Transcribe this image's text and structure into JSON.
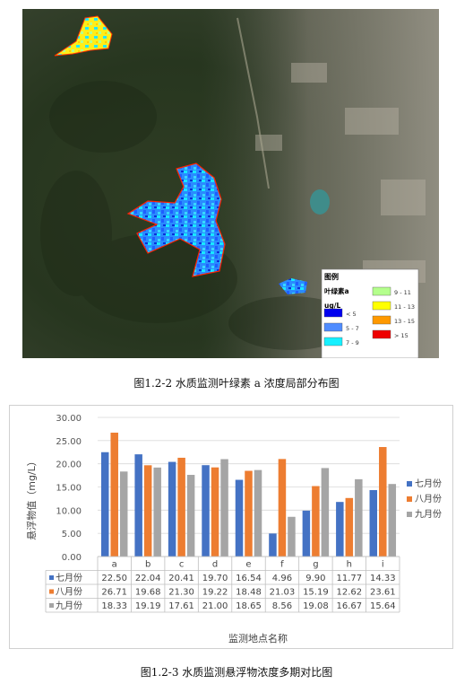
{
  "map_figure": {
    "legend": {
      "title": "图例",
      "parameter": "叶绿素a",
      "unit": "ug/L",
      "items": [
        {
          "label": "< 5",
          "color": "#0000ee"
        },
        {
          "label": "5 - 7",
          "color": "#4f8cff"
        },
        {
          "label": "7 - 9",
          "color": "#16f0ff"
        },
        {
          "label": "9 - 11",
          "color": "#b4ff8c"
        },
        {
          "label": "11 - 13",
          "color": "#ffff00"
        },
        {
          "label": "13 - 15",
          "color": "#ff9900"
        },
        {
          "label": "> 15",
          "color": "#ee0000"
        }
      ]
    },
    "caption": "图1.2-2 水质监测叶绿素 a 浓度局部分布图"
  },
  "chart_data": {
    "type": "bar",
    "ylabel": "悬浮物值（mg/L）",
    "xlabel": "监测地点名称",
    "ylim": [
      0,
      30
    ],
    "yticks": [
      "0.00",
      "5.00",
      "10.00",
      "15.00",
      "20.00",
      "25.00",
      "30.00"
    ],
    "categories": [
      "a",
      "b",
      "c",
      "d",
      "e",
      "f",
      "g",
      "h",
      "i"
    ],
    "series": [
      {
        "name": "七月份",
        "color": "#4472c4",
        "values": [
          22.5,
          22.04,
          20.41,
          19.7,
          16.54,
          4.96,
          9.9,
          11.77,
          14.33
        ],
        "labels": [
          "22.50",
          "22.04",
          "20.41",
          "19.70",
          "16.54",
          "4.96",
          "9.90",
          "11.77",
          "14.33"
        ]
      },
      {
        "name": "八月份",
        "color": "#ed7d31",
        "values": [
          26.71,
          19.68,
          21.3,
          19.22,
          18.48,
          21.03,
          15.19,
          12.62,
          23.61
        ],
        "labels": [
          "26.71",
          "19.68",
          "21.30",
          "19.22",
          "18.48",
          "21.03",
          "15.19",
          "12.62",
          "23.61"
        ]
      },
      {
        "name": "九月份",
        "color": "#a5a5a5",
        "values": [
          18.33,
          19.19,
          17.61,
          21.0,
          18.65,
          8.56,
          19.08,
          16.67,
          15.64
        ],
        "labels": [
          "18.33",
          "19.19",
          "17.61",
          "21.00",
          "18.65",
          "8.56",
          "19.08",
          "16.67",
          "15.64"
        ]
      }
    ],
    "grid": true,
    "legend_position": "right",
    "data_table": true
  },
  "chart_caption": "图1.2-3 水质监测悬浮物浓度多期对比图"
}
